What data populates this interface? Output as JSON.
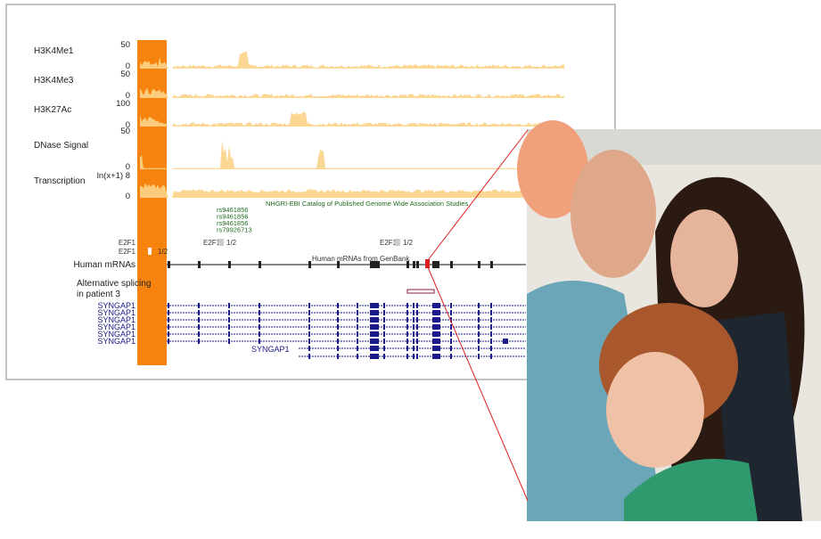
{
  "tracks": [
    {
      "label": "H3K4Me1",
      "max": 50,
      "min": 0
    },
    {
      "label": "H3K4Me3",
      "max": 50,
      "min": 0
    },
    {
      "label": "H3K27Ac",
      "max": 100,
      "min": 0
    },
    {
      "label": "DNase Signal",
      "max": 50,
      "min": 0
    },
    {
      "label": "Transcription",
      "max": "ln(x+1) 8",
      "min": 0
    }
  ],
  "gwas": {
    "title": "NHGRI-EBI Catalog of Published Genome Wide Association Studies",
    "snps": [
      "rs9461856",
      "rs9461856",
      "rs9461856",
      "rs79926713"
    ]
  },
  "e2f1": {
    "left_labels": [
      "E2F1",
      "E2F1"
    ],
    "left_score": "1/2",
    "sites": [
      {
        "label": "E2F1",
        "score": "1/2"
      },
      {
        "label": "E2F1",
        "score": "1/2"
      }
    ]
  },
  "mrna": {
    "label": "Human mRNAs",
    "title": "Human mRNAs from GenBank"
  },
  "splicing": {
    "label": [
      "Alternative splicing",
      "in patient 3"
    ]
  },
  "genes": {
    "labels": [
      "SYNGAP1",
      "SYNGAP1",
      "SYNGAP1",
      "SYNGAP1",
      "SYNGAP1",
      "SYNGAP1"
    ],
    "bottom": "SYNGAP1"
  }
}
